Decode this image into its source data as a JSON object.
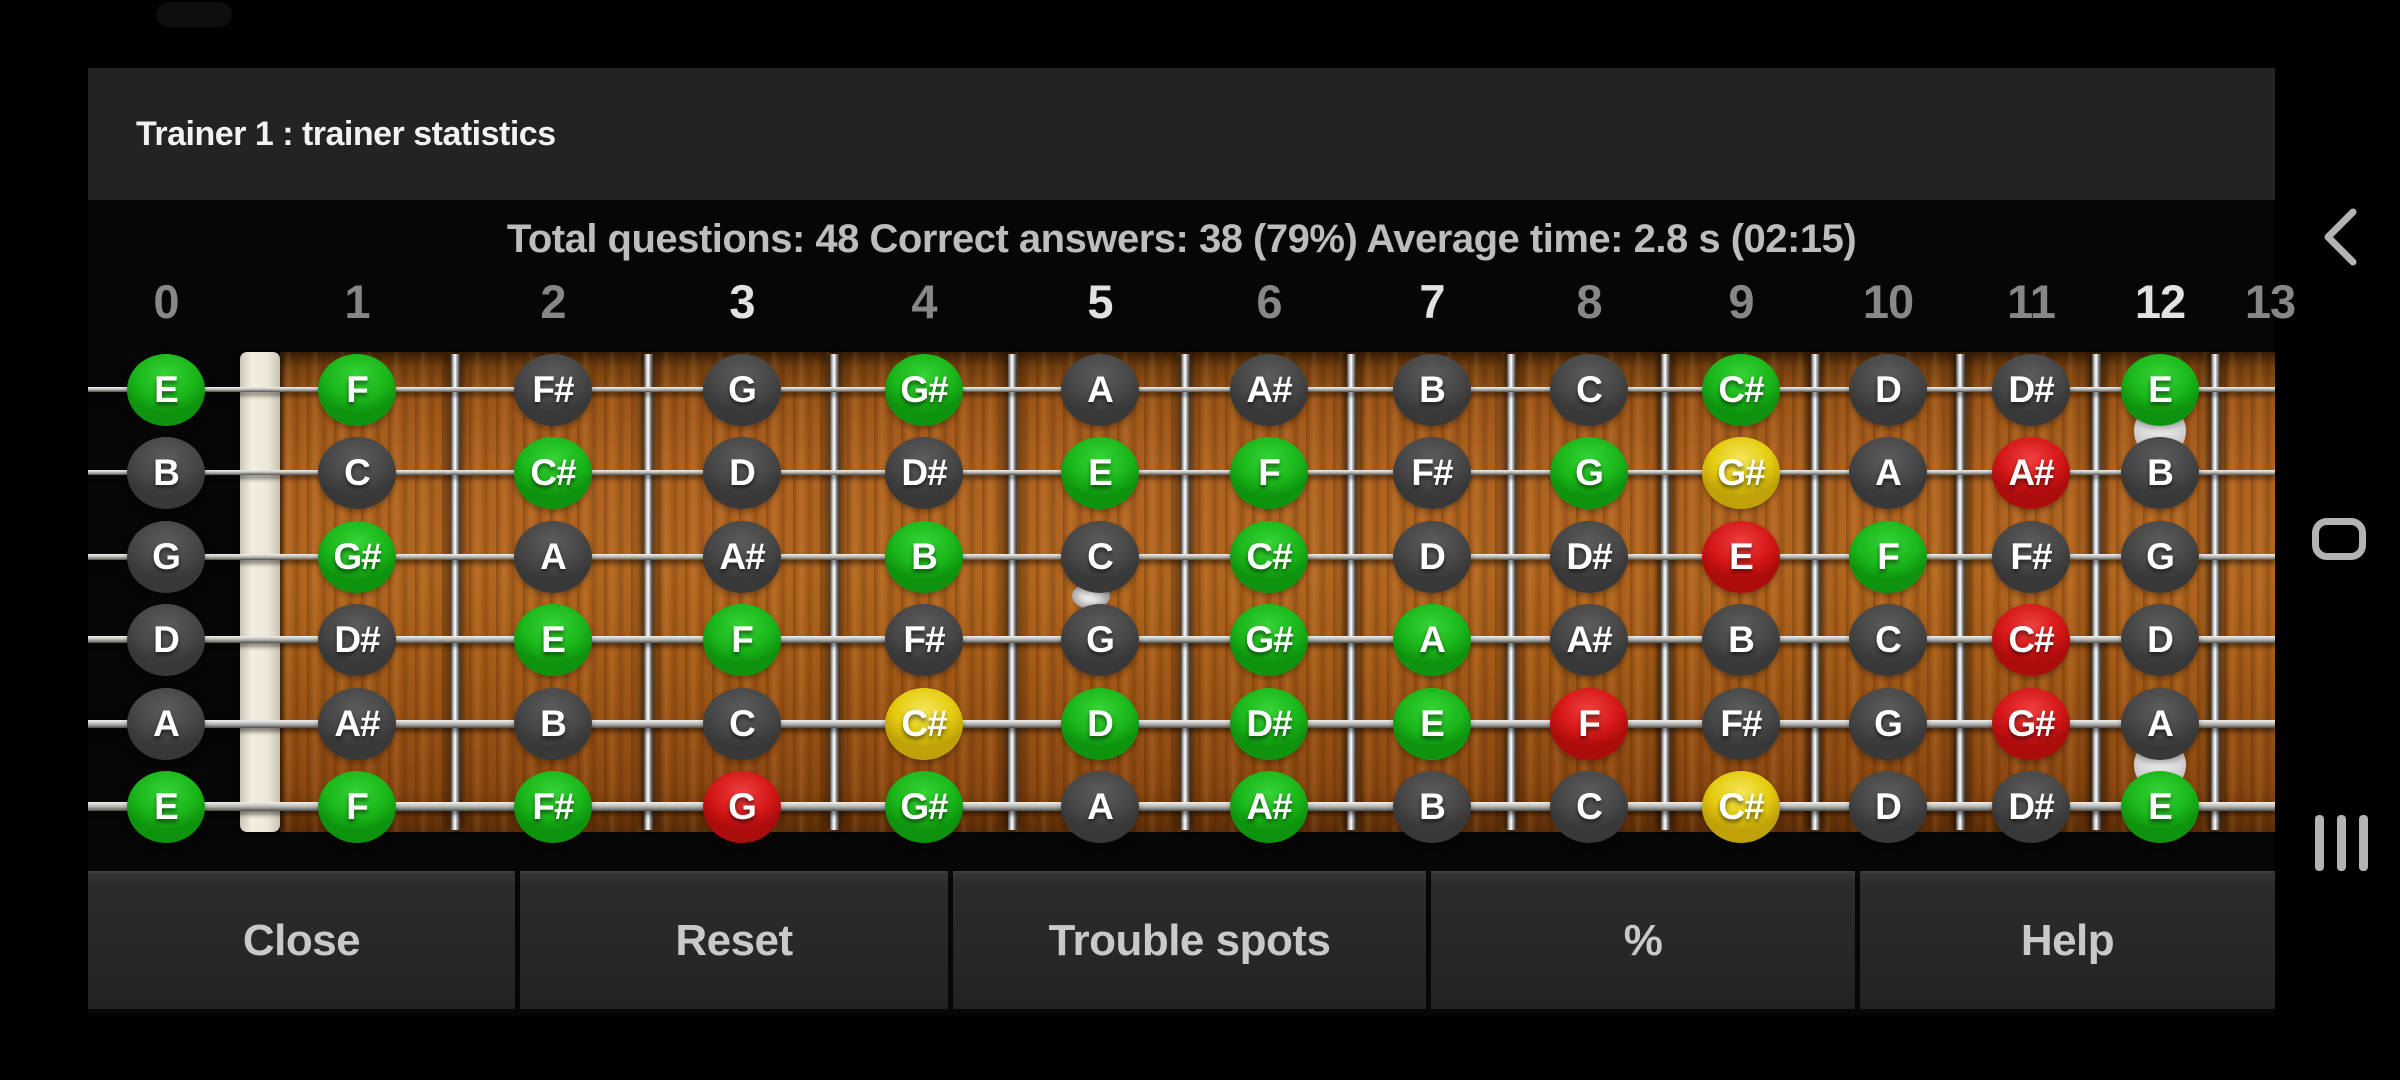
{
  "window": {
    "title": "Trainer 1 : trainer statistics"
  },
  "stats": {
    "questions_label": "Total questions:",
    "questions_value": "48",
    "correct_label": "Correct answers:",
    "correct_value": "38 (79%)",
    "time_label": "Average time:",
    "time_value": "2.8 s (02:15)"
  },
  "fret_numbers": [
    {
      "label": "0",
      "marker": false
    },
    {
      "label": "1",
      "marker": false
    },
    {
      "label": "2",
      "marker": false
    },
    {
      "label": "3",
      "marker": true
    },
    {
      "label": "4",
      "marker": false
    },
    {
      "label": "5",
      "marker": true
    },
    {
      "label": "6",
      "marker": false
    },
    {
      "label": "7",
      "marker": true
    },
    {
      "label": "8",
      "marker": false
    },
    {
      "label": "9",
      "marker": false
    },
    {
      "label": "10",
      "marker": false
    },
    {
      "label": "11",
      "marker": false
    },
    {
      "label": "12",
      "marker": true
    },
    {
      "label": "13",
      "marker": false
    }
  ],
  "colors": {
    "green": "#1ab61a",
    "gray": "#474747",
    "red": "#d31616",
    "yellow": "#e4cc10",
    "wood": "#a75d18",
    "nut": "#ede7d8",
    "titlebar": "#232323",
    "stats_text": "#bdbdbd"
  },
  "fretboard": {
    "strings": [
      {
        "frets": [
          {
            "note": "E",
            "state": "green"
          },
          {
            "note": "F",
            "state": "green"
          },
          {
            "note": "F#",
            "state": "gray"
          },
          {
            "note": "G",
            "state": "gray"
          },
          {
            "note": "G#",
            "state": "green"
          },
          {
            "note": "A",
            "state": "gray"
          },
          {
            "note": "A#",
            "state": "gray"
          },
          {
            "note": "B",
            "state": "gray"
          },
          {
            "note": "C",
            "state": "gray"
          },
          {
            "note": "C#",
            "state": "green"
          },
          {
            "note": "D",
            "state": "gray"
          },
          {
            "note": "D#",
            "state": "gray"
          },
          {
            "note": "E",
            "state": "green"
          }
        ]
      },
      {
        "frets": [
          {
            "note": "B",
            "state": "gray"
          },
          {
            "note": "C",
            "state": "gray"
          },
          {
            "note": "C#",
            "state": "green"
          },
          {
            "note": "D",
            "state": "gray"
          },
          {
            "note": "D#",
            "state": "gray"
          },
          {
            "note": "E",
            "state": "green"
          },
          {
            "note": "F",
            "state": "green"
          },
          {
            "note": "F#",
            "state": "gray"
          },
          {
            "note": "G",
            "state": "green"
          },
          {
            "note": "G#",
            "state": "yellow"
          },
          {
            "note": "A",
            "state": "gray"
          },
          {
            "note": "A#",
            "state": "red"
          },
          {
            "note": "B",
            "state": "gray"
          }
        ]
      },
      {
        "frets": [
          {
            "note": "G",
            "state": "gray"
          },
          {
            "note": "G#",
            "state": "green"
          },
          {
            "note": "A",
            "state": "gray"
          },
          {
            "note": "A#",
            "state": "gray"
          },
          {
            "note": "B",
            "state": "green"
          },
          {
            "note": "C",
            "state": "gray"
          },
          {
            "note": "C#",
            "state": "green"
          },
          {
            "note": "D",
            "state": "gray"
          },
          {
            "note": "D#",
            "state": "gray"
          },
          {
            "note": "E",
            "state": "red"
          },
          {
            "note": "F",
            "state": "green"
          },
          {
            "note": "F#",
            "state": "gray"
          },
          {
            "note": "G",
            "state": "gray"
          }
        ]
      },
      {
        "frets": [
          {
            "note": "D",
            "state": "gray"
          },
          {
            "note": "D#",
            "state": "gray"
          },
          {
            "note": "E",
            "state": "green"
          },
          {
            "note": "F",
            "state": "green"
          },
          {
            "note": "F#",
            "state": "gray"
          },
          {
            "note": "G",
            "state": "gray"
          },
          {
            "note": "G#",
            "state": "green"
          },
          {
            "note": "A",
            "state": "green"
          },
          {
            "note": "A#",
            "state": "gray"
          },
          {
            "note": "B",
            "state": "gray"
          },
          {
            "note": "C",
            "state": "gray"
          },
          {
            "note": "C#",
            "state": "red"
          },
          {
            "note": "D",
            "state": "gray"
          }
        ]
      },
      {
        "frets": [
          {
            "note": "A",
            "state": "gray"
          },
          {
            "note": "A#",
            "state": "gray"
          },
          {
            "note": "B",
            "state": "gray"
          },
          {
            "note": "C",
            "state": "gray"
          },
          {
            "note": "C#",
            "state": "yellow"
          },
          {
            "note": "D",
            "state": "green"
          },
          {
            "note": "D#",
            "state": "green"
          },
          {
            "note": "E",
            "state": "green"
          },
          {
            "note": "F",
            "state": "red"
          },
          {
            "note": "F#",
            "state": "gray"
          },
          {
            "note": "G",
            "state": "gray"
          },
          {
            "note": "G#",
            "state": "red"
          },
          {
            "note": "A",
            "state": "gray"
          }
        ]
      },
      {
        "frets": [
          {
            "note": "E",
            "state": "green"
          },
          {
            "note": "F",
            "state": "green"
          },
          {
            "note": "F#",
            "state": "green"
          },
          {
            "note": "G",
            "state": "red"
          },
          {
            "note": "G#",
            "state": "green"
          },
          {
            "note": "A",
            "state": "gray"
          },
          {
            "note": "A#",
            "state": "green"
          },
          {
            "note": "B",
            "state": "gray"
          },
          {
            "note": "C",
            "state": "gray"
          },
          {
            "note": "C#",
            "state": "yellow"
          },
          {
            "note": "D",
            "state": "gray"
          },
          {
            "note": "D#",
            "state": "gray"
          },
          {
            "note": "E",
            "state": "green"
          }
        ]
      }
    ]
  },
  "buttons": [
    {
      "label": "Close"
    },
    {
      "label": "Reset"
    },
    {
      "label": "Trouble spots"
    },
    {
      "label": "%"
    },
    {
      "label": "Help"
    }
  ]
}
